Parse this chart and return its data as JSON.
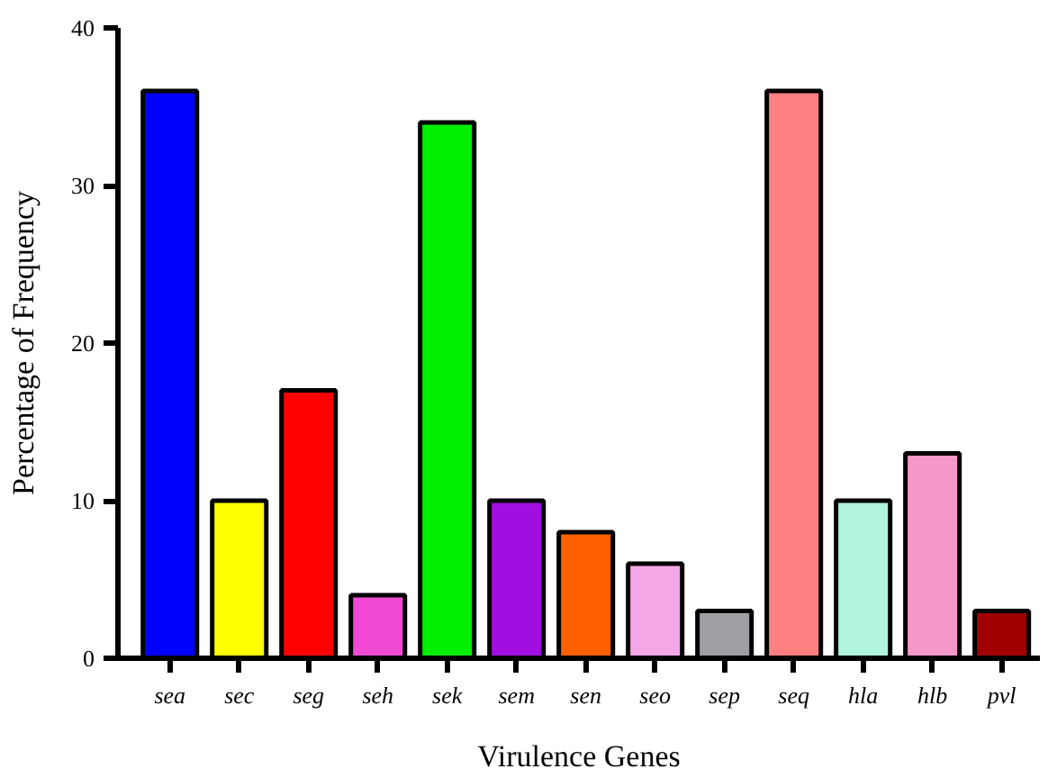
{
  "chart_data": {
    "type": "bar",
    "xlabel": "Virulence Genes",
    "ylabel": "Percentage of Frequency",
    "categories": [
      "sea",
      "sec",
      "seg",
      "seh",
      "sek",
      "sem",
      "sen",
      "seo",
      "sep",
      "seq",
      "hla",
      "hlb",
      "pvl"
    ],
    "values": [
      36,
      10,
      17,
      4,
      34,
      10,
      8,
      6,
      3,
      36,
      10,
      13,
      3
    ],
    "colors": [
      "#0000ff",
      "#ffff00",
      "#ff0000",
      "#f04ad4",
      "#00ee00",
      "#a10ee0",
      "#ff6000",
      "#f5a8e8",
      "#a0a0a4",
      "#ff8080",
      "#b0f5dc",
      "#f598c8",
      "#a00000"
    ],
    "ylim": [
      0,
      40
    ],
    "yticks": [
      0,
      10,
      20,
      30,
      40
    ],
    "grid": false
  }
}
